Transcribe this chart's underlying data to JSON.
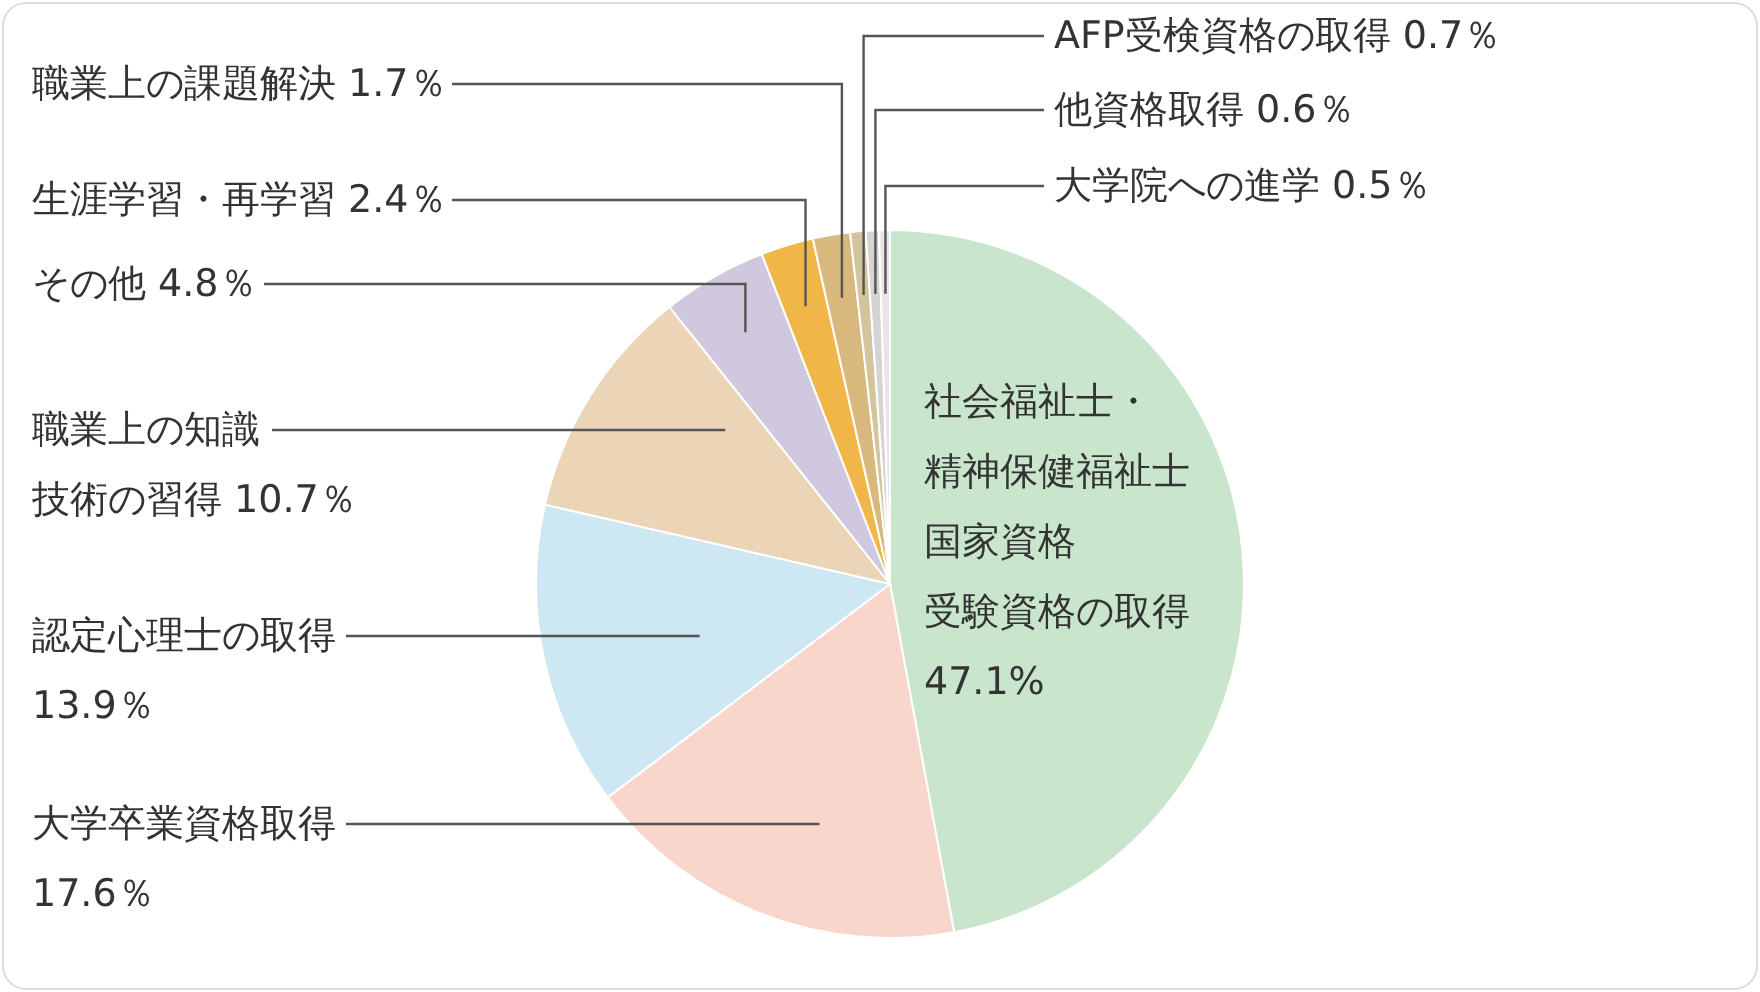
{
  "chart_data": {
    "type": "pie",
    "categories": [
      "社会福祉士・精神保健福祉士国家資格受験資格の取得",
      "大学卒業資格取得",
      "認定心理士の取得",
      "職業上の知識技術の習得",
      "その他",
      "生涯学習・再学習",
      "職業上の課題解決",
      "AFP受検資格の取得",
      "他資格取得",
      "大学院への進学"
    ],
    "values": [
      47.1,
      17.6,
      13.9,
      10.7,
      4.8,
      2.4,
      1.7,
      0.7,
      0.6,
      0.5
    ],
    "value_labels": [
      "47.1%",
      "17.6％",
      "13.9％",
      "10.7％",
      "4.8％",
      "2.4％",
      "1.7％",
      "0.7％",
      "0.6％",
      "0.5％"
    ],
    "colors": [
      "#c9e6cc",
      "#f9d6cc",
      "#cde8f3",
      "#ecd4b6",
      "#d0c8df",
      "#f0b648",
      "#d8b87c",
      "#d2c59e",
      "#d4d4d4",
      "#e6e6e6"
    ]
  }
}
